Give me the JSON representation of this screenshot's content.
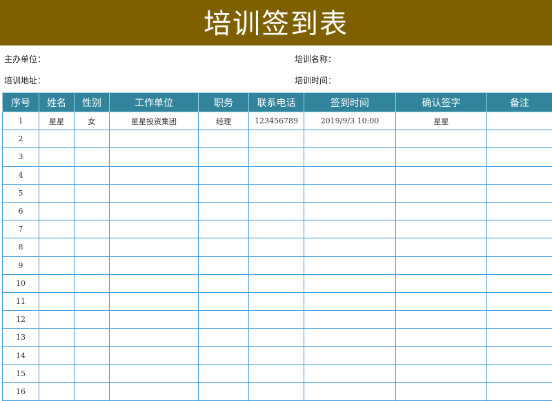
{
  "title": "培训签到表",
  "info": {
    "organizer": "主办单位：",
    "training_name": "培训名称：",
    "address": "培训地址：",
    "time": "培训时间："
  },
  "colors": {
    "title_bg": "#7f6000",
    "header_bg": "#31849b",
    "grid": "#3a9ad9"
  },
  "table": {
    "headers": [
      "序号",
      "姓名",
      "性别",
      "工作单位",
      "职务",
      "联系电话",
      "签到时间",
      "确认签字",
      "备注"
    ],
    "rows": [
      [
        "1",
        "星星",
        "女",
        "星星投资集团",
        "经理",
        "123456789",
        "2019/9/3  10:00",
        "星星",
        ""
      ],
      [
        "2",
        "",
        "",
        "",
        "",
        "",
        "",
        "",
        ""
      ],
      [
        "3",
        "",
        "",
        "",
        "",
        "",
        "",
        "",
        ""
      ],
      [
        "4",
        "",
        "",
        "",
        "",
        "",
        "",
        "",
        ""
      ],
      [
        "5",
        "",
        "",
        "",
        "",
        "",
        "",
        "",
        ""
      ],
      [
        "6",
        "",
        "",
        "",
        "",
        "",
        "",
        "",
        ""
      ],
      [
        "7",
        "",
        "",
        "",
        "",
        "",
        "",
        "",
        ""
      ],
      [
        "8",
        "",
        "",
        "",
        "",
        "",
        "",
        "",
        ""
      ],
      [
        "9",
        "",
        "",
        "",
        "",
        "",
        "",
        "",
        ""
      ],
      [
        "10",
        "",
        "",
        "",
        "",
        "",
        "",
        "",
        ""
      ],
      [
        "11",
        "",
        "",
        "",
        "",
        "",
        "",
        "",
        ""
      ],
      [
        "12",
        "",
        "",
        "",
        "",
        "",
        "",
        "",
        ""
      ],
      [
        "13",
        "",
        "",
        "",
        "",
        "",
        "",
        "",
        ""
      ],
      [
        "14",
        "",
        "",
        "",
        "",
        "",
        "",
        "",
        ""
      ],
      [
        "15",
        "",
        "",
        "",
        "",
        "",
        "",
        "",
        ""
      ],
      [
        "16",
        "",
        "",
        "",
        "",
        "",
        "",
        "",
        ""
      ]
    ]
  }
}
